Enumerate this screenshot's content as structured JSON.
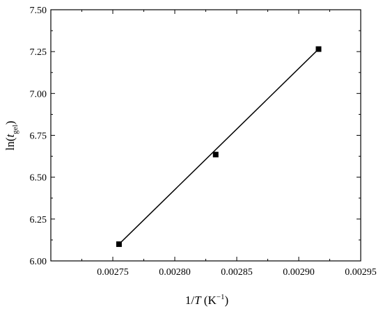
{
  "chart_data": {
    "type": "scatter",
    "title": "",
    "xlabel": {
      "prefix": "1/",
      "var": "T",
      "unit_open": " (K",
      "unit_sup": "−1",
      "unit_close": ")"
    },
    "ylabel": {
      "prefix": "ln(",
      "var": "t",
      "sub": "gel",
      "suffix": ")"
    },
    "xlim": [
      0.0027,
      0.00295
    ],
    "ylim": [
      6.0,
      7.5
    ],
    "xticks": [
      0.00275,
      0.0028,
      0.00285,
      0.0029,
      0.00295
    ],
    "xtick_labels": [
      "0.00275",
      "0.00280",
      "0.00285",
      "0.00290",
      "0.00295"
    ],
    "yticks": [
      6.0,
      6.25,
      6.5,
      6.75,
      7.0,
      7.25,
      7.5
    ],
    "ytick_labels": [
      "6.00",
      "6.25",
      "6.50",
      "6.75",
      "7.00",
      "7.25",
      "7.50"
    ],
    "grid": false,
    "marker": "square",
    "series": [
      {
        "x": [
          0.002755,
          0.002833,
          0.002916
        ],
        "y": [
          6.1,
          6.635,
          7.265
        ]
      }
    ],
    "fit_line": {
      "x": [
        0.002755,
        0.002916
      ],
      "y": [
        6.1,
        7.265
      ]
    }
  }
}
